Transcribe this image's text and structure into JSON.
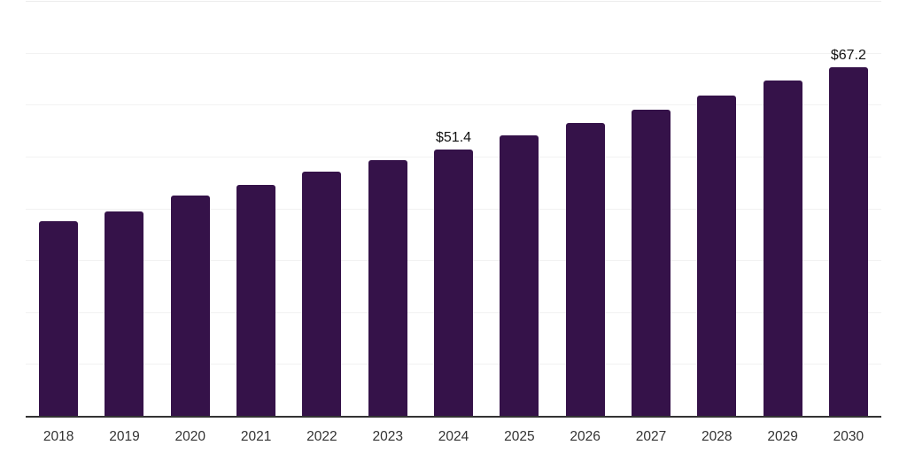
{
  "chart": {
    "bar_color": "#351249",
    "axis_color": "#333333",
    "gridline_color": "#f2f2f2",
    "top_line_color": "#ececec",
    "value_label_color": "#111111",
    "tick_label_color": "#333333",
    "background_color": "#ffffff"
  },
  "chart_data": {
    "type": "bar",
    "title": "",
    "xlabel": "",
    "ylabel": "",
    "categories": [
      "2018",
      "2019",
      "2020",
      "2021",
      "2022",
      "2023",
      "2024",
      "2025",
      "2026",
      "2027",
      "2028",
      "2029",
      "2030"
    ],
    "values": [
      37.5,
      39.4,
      42.4,
      44.6,
      47.1,
      49.3,
      51.4,
      54.0,
      56.4,
      59.0,
      61.7,
      64.6,
      67.2
    ],
    "data_labels": [
      "",
      "",
      "",
      "",
      "",
      "",
      "$51.4",
      "",
      "",
      "",
      "",
      "",
      "$67.2"
    ],
    "ylim": [
      0,
      80
    ],
    "grid_step": 10,
    "grid": "horizontal",
    "y_axis_ticks_visible": false,
    "legend": "none"
  }
}
